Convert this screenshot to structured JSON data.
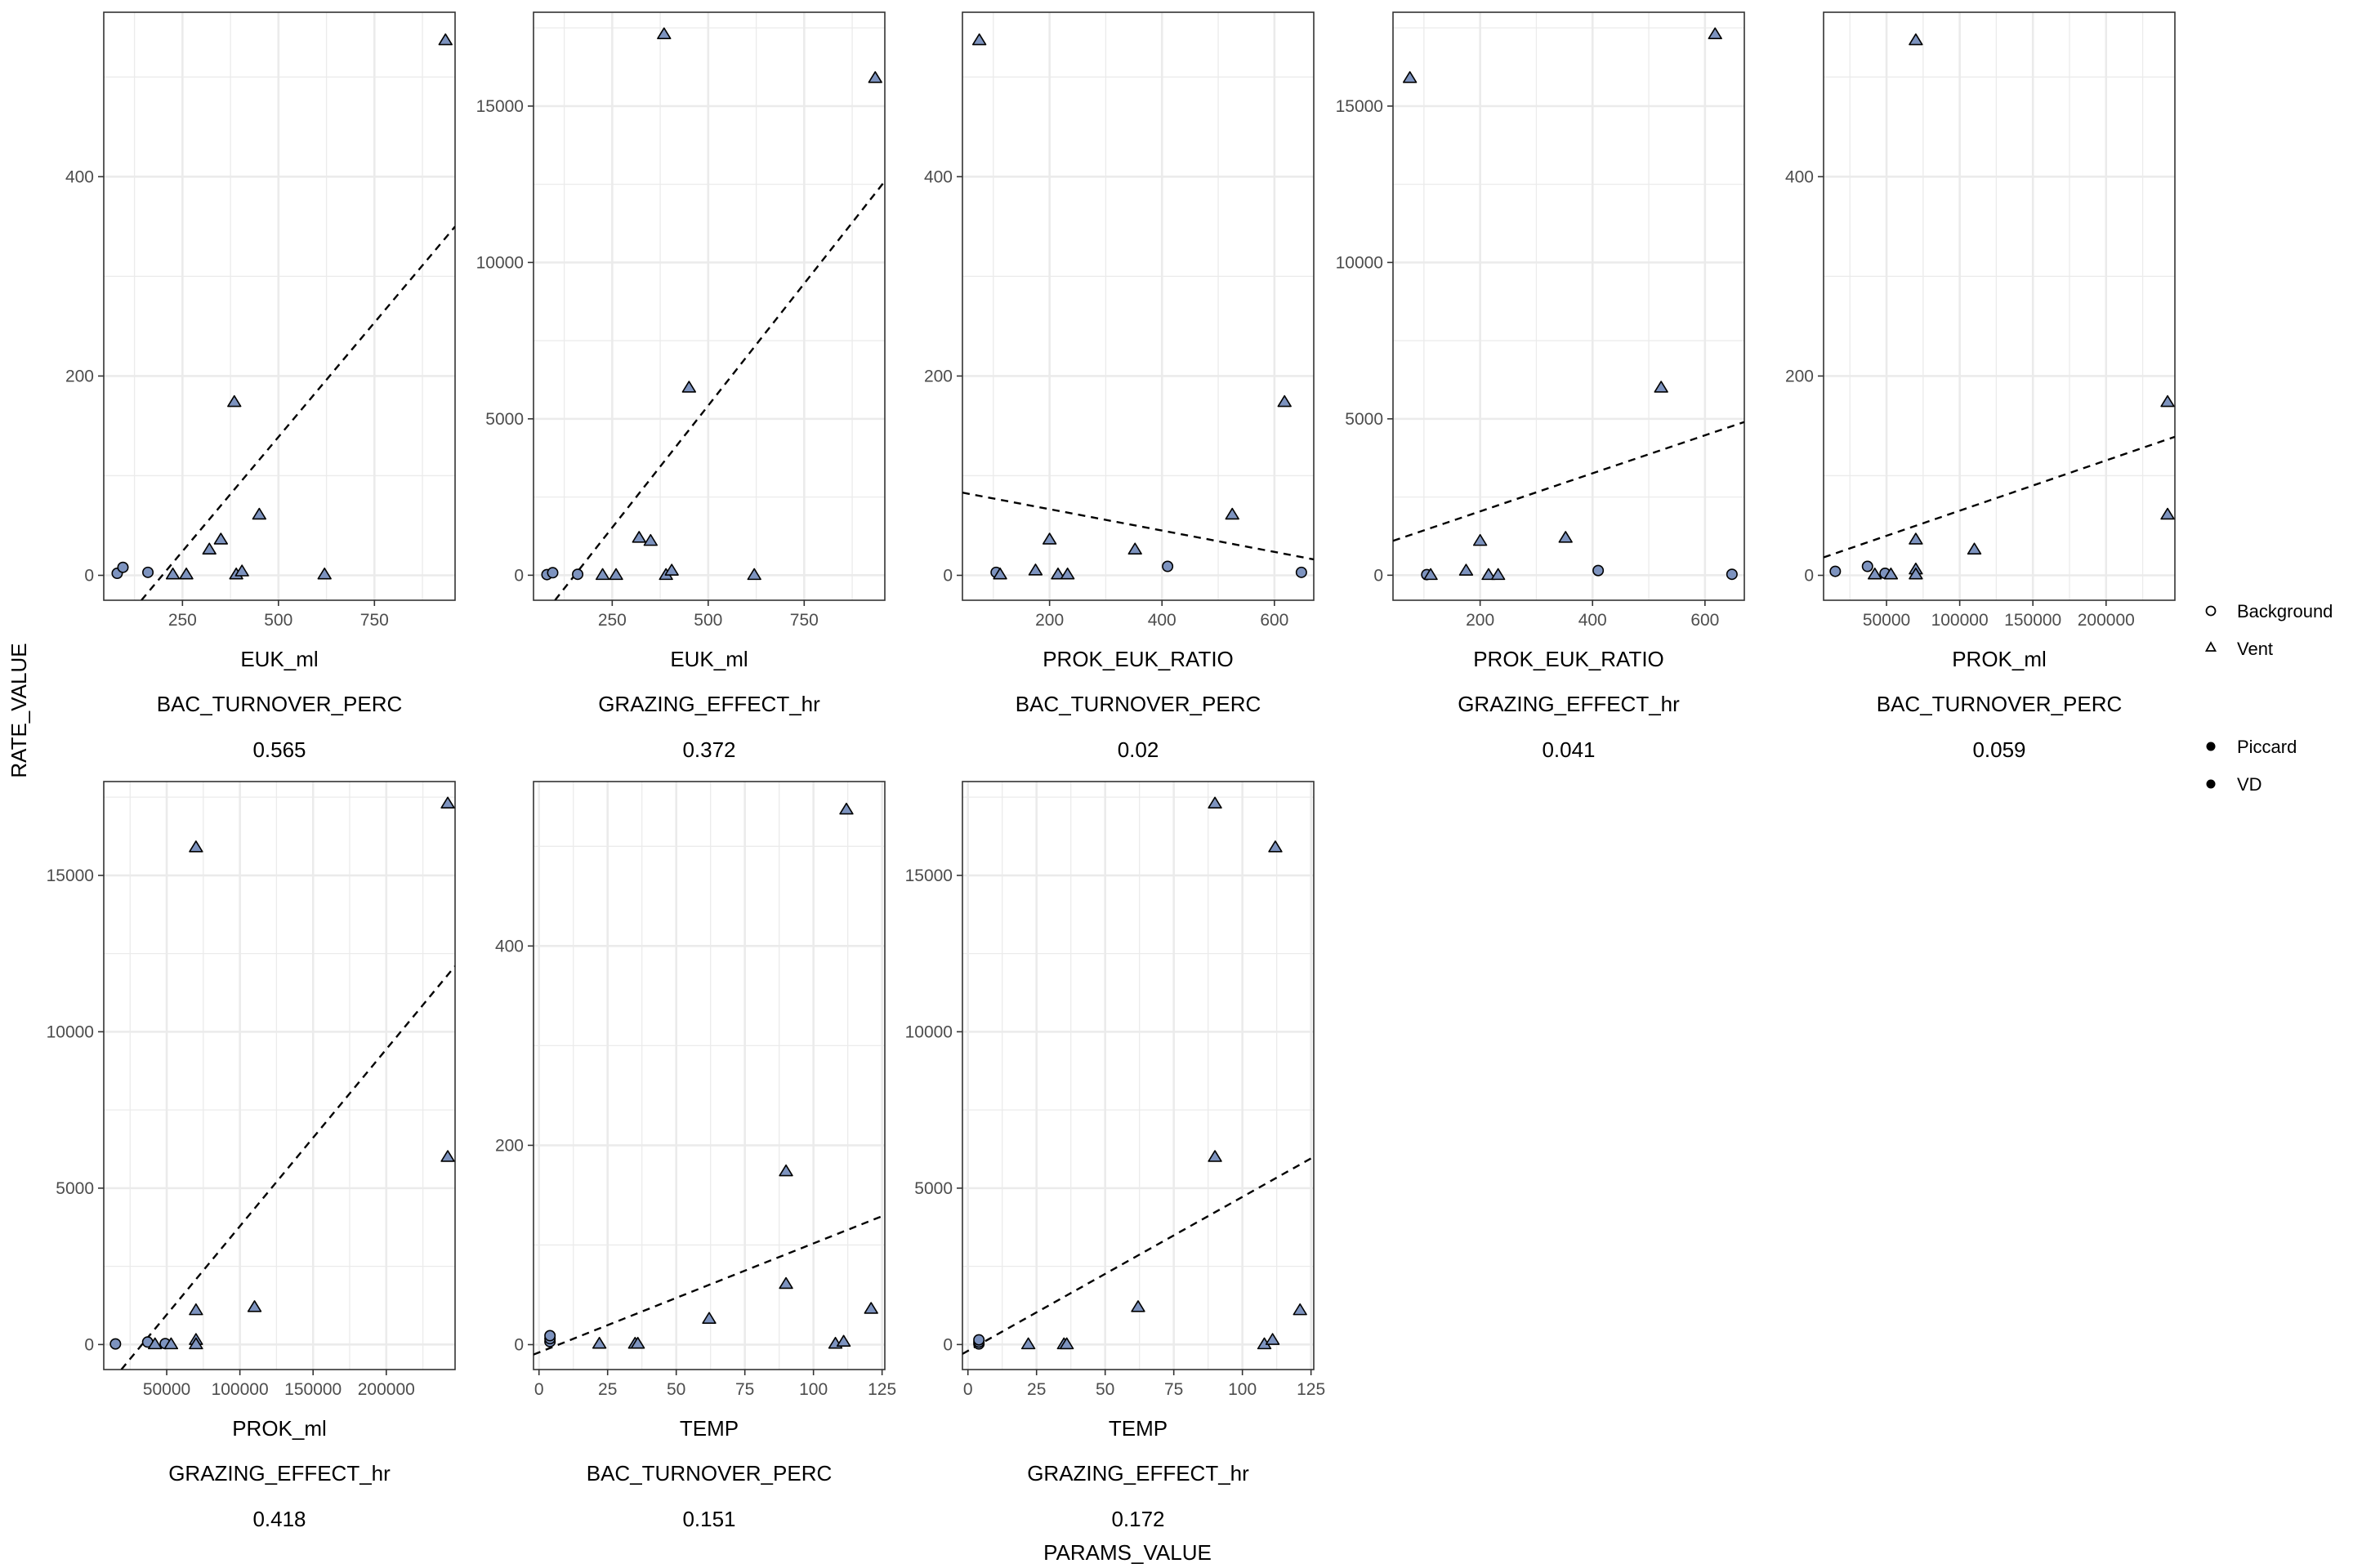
{
  "figure": {
    "y_axis_title": "RATE_VALUE",
    "x_axis_title": "PARAMS_VALUE"
  },
  "legend": {
    "shape_entries": [
      {
        "label": "Background",
        "shape": "circle-open"
      },
      {
        "label": "Vent",
        "shape": "triangle-open"
      }
    ],
    "color_entries": [
      {
        "label": "Piccard",
        "color": "#000000"
      },
      {
        "label": "VD",
        "color": "#000000"
      }
    ]
  },
  "colors": {
    "point_fill": "#7d93bf",
    "point_stroke": "#000000",
    "gridline": "#ebebeb",
    "panel_border": "#333333",
    "trend_line": "#000000"
  },
  "chart_data": [
    {
      "type": "scatter",
      "xlabel": "EUK_ml",
      "strip1": "BAC_TURNOVER_PERC",
      "strip2": "0.565",
      "xlim": [
        45,
        960
      ],
      "ylim": [
        -25,
        565
      ],
      "x_ticks": [
        250,
        500,
        750
      ],
      "x_tick_labels": [
        "250",
        "500",
        "750"
      ],
      "y_ticks": [
        0,
        200,
        400
      ],
      "y_tick_labels": [
        "0",
        "200",
        "400"
      ],
      "trend": [
        [
          143,
          -25
        ],
        [
          960,
          350
        ]
      ],
      "points": [
        {
          "x": 80,
          "y": 2,
          "shape": "circle"
        },
        {
          "x": 95,
          "y": 8,
          "shape": "circle"
        },
        {
          "x": 160,
          "y": 3,
          "shape": "circle"
        },
        {
          "x": 225,
          "y": 1,
          "shape": "triangle"
        },
        {
          "x": 260,
          "y": 1,
          "shape": "triangle"
        },
        {
          "x": 320,
          "y": 26,
          "shape": "triangle"
        },
        {
          "x": 350,
          "y": 36,
          "shape": "triangle"
        },
        {
          "x": 385,
          "y": 174,
          "shape": "triangle"
        },
        {
          "x": 390,
          "y": 1,
          "shape": "triangle"
        },
        {
          "x": 405,
          "y": 4,
          "shape": "triangle"
        },
        {
          "x": 450,
          "y": 61,
          "shape": "triangle"
        },
        {
          "x": 620,
          "y": 1,
          "shape": "triangle"
        },
        {
          "x": 935,
          "y": 537,
          "shape": "triangle"
        }
      ]
    },
    {
      "type": "scatter",
      "xlabel": "EUK_ml",
      "strip1": "GRAZING_EFFECT_hr",
      "strip2": "0.372",
      "xlim": [
        45,
        960
      ],
      "ylim": [
        -800,
        18000
      ],
      "x_ticks": [
        250,
        500,
        750
      ],
      "x_tick_labels": [
        "250",
        "500",
        "750"
      ],
      "y_ticks": [
        0,
        5000,
        10000,
        15000
      ],
      "y_tick_labels": [
        "0",
        "5000",
        "10000",
        "15000"
      ],
      "trend": [
        [
          101,
          -800
        ],
        [
          960,
          12600
        ]
      ],
      "points": [
        {
          "x": 80,
          "y": 20,
          "shape": "circle"
        },
        {
          "x": 95,
          "y": 80,
          "shape": "circle"
        },
        {
          "x": 160,
          "y": 30,
          "shape": "circle"
        },
        {
          "x": 225,
          "y": 10,
          "shape": "triangle"
        },
        {
          "x": 260,
          "y": 10,
          "shape": "triangle"
        },
        {
          "x": 320,
          "y": 1200,
          "shape": "triangle"
        },
        {
          "x": 350,
          "y": 1100,
          "shape": "triangle"
        },
        {
          "x": 385,
          "y": 17300,
          "shape": "triangle"
        },
        {
          "x": 390,
          "y": 10,
          "shape": "triangle"
        },
        {
          "x": 405,
          "y": 150,
          "shape": "triangle"
        },
        {
          "x": 450,
          "y": 6000,
          "shape": "triangle"
        },
        {
          "x": 620,
          "y": 10,
          "shape": "triangle"
        },
        {
          "x": 935,
          "y": 15900,
          "shape": "triangle"
        }
      ]
    },
    {
      "type": "scatter",
      "xlabel": "PROK_EUK_RATIO",
      "strip1": "BAC_TURNOVER_PERC",
      "strip2": "0.02",
      "xlim": [
        45,
        670
      ],
      "ylim": [
        -25,
        565
      ],
      "x_ticks": [
        200,
        400,
        600
      ],
      "x_tick_labels": [
        "200",
        "400",
        "600"
      ],
      "y_ticks": [
        0,
        200,
        400
      ],
      "y_tick_labels": [
        "0",
        "200",
        "400"
      ],
      "trend": [
        [
          45,
          83
        ],
        [
          670,
          16
        ]
      ],
      "points": [
        {
          "x": 105,
          "y": 3,
          "shape": "circle"
        },
        {
          "x": 410,
          "y": 9,
          "shape": "circle"
        },
        {
          "x": 648,
          "y": 3,
          "shape": "circle"
        },
        {
          "x": 75,
          "y": 537,
          "shape": "triangle"
        },
        {
          "x": 112,
          "y": 1,
          "shape": "triangle"
        },
        {
          "x": 175,
          "y": 5,
          "shape": "triangle"
        },
        {
          "x": 200,
          "y": 36,
          "shape": "triangle"
        },
        {
          "x": 215,
          "y": 1,
          "shape": "triangle"
        },
        {
          "x": 232,
          "y": 1,
          "shape": "triangle"
        },
        {
          "x": 352,
          "y": 26,
          "shape": "triangle"
        },
        {
          "x": 525,
          "y": 61,
          "shape": "triangle"
        },
        {
          "x": 618,
          "y": 174,
          "shape": "triangle"
        }
      ]
    },
    {
      "type": "scatter",
      "xlabel": "PROK_EUK_RATIO",
      "strip1": "GRAZING_EFFECT_hr",
      "strip2": "0.041",
      "xlim": [
        45,
        670
      ],
      "ylim": [
        -800,
        18000
      ],
      "x_ticks": [
        200,
        400,
        600
      ],
      "x_tick_labels": [
        "200",
        "400",
        "600"
      ],
      "y_ticks": [
        0,
        5000,
        10000,
        15000
      ],
      "y_tick_labels": [
        "0",
        "5000",
        "10000",
        "15000"
      ],
      "trend": [
        [
          45,
          1100
        ],
        [
          670,
          4900
        ]
      ],
      "points": [
        {
          "x": 105,
          "y": 20,
          "shape": "circle"
        },
        {
          "x": 410,
          "y": 150,
          "shape": "circle"
        },
        {
          "x": 648,
          "y": 30,
          "shape": "circle"
        },
        {
          "x": 75,
          "y": 15900,
          "shape": "triangle"
        },
        {
          "x": 112,
          "y": 10,
          "shape": "triangle"
        },
        {
          "x": 175,
          "y": 150,
          "shape": "triangle"
        },
        {
          "x": 200,
          "y": 1100,
          "shape": "triangle"
        },
        {
          "x": 215,
          "y": 10,
          "shape": "triangle"
        },
        {
          "x": 232,
          "y": 10,
          "shape": "triangle"
        },
        {
          "x": 352,
          "y": 1200,
          "shape": "triangle"
        },
        {
          "x": 522,
          "y": 6000,
          "shape": "triangle"
        },
        {
          "x": 618,
          "y": 17300,
          "shape": "triangle"
        }
      ]
    },
    {
      "type": "scatter",
      "xlabel": "PROK_ml",
      "strip1": "BAC_TURNOVER_PERC",
      "strip2": "0.059",
      "xlim": [
        7000,
        247000
      ],
      "ylim": [
        -25,
        565
      ],
      "x_ticks": [
        50000,
        100000,
        150000,
        200000
      ],
      "x_tick_labels": [
        "50000",
        "100000",
        "150000",
        "200000"
      ],
      "y_ticks": [
        0,
        200,
        400
      ],
      "y_tick_labels": [
        "0",
        "200",
        "400"
      ],
      "trend": [
        [
          7000,
          18
        ],
        [
          247000,
          139
        ]
      ],
      "points": [
        {
          "x": 15000,
          "y": 4,
          "shape": "circle"
        },
        {
          "x": 37000,
          "y": 9,
          "shape": "circle"
        },
        {
          "x": 49000,
          "y": 2,
          "shape": "circle"
        },
        {
          "x": 42000,
          "y": 1,
          "shape": "triangle"
        },
        {
          "x": 53000,
          "y": 1,
          "shape": "triangle"
        },
        {
          "x": 70000,
          "y": 537,
          "shape": "triangle"
        },
        {
          "x": 70000,
          "y": 36,
          "shape": "triangle"
        },
        {
          "x": 70000,
          "y": 6,
          "shape": "triangle"
        },
        {
          "x": 70000,
          "y": 1,
          "shape": "triangle"
        },
        {
          "x": 110000,
          "y": 26,
          "shape": "triangle"
        },
        {
          "x": 242000,
          "y": 174,
          "shape": "triangle"
        },
        {
          "x": 242000,
          "y": 61,
          "shape": "triangle"
        }
      ]
    },
    {
      "type": "scatter",
      "xlabel": "PROK_ml",
      "strip1": "GRAZING_EFFECT_hr",
      "strip2": "0.418",
      "xlim": [
        7000,
        247000
      ],
      "ylim": [
        -800,
        18000
      ],
      "x_ticks": [
        50000,
        100000,
        150000,
        200000
      ],
      "x_tick_labels": [
        "50000",
        "100000",
        "150000",
        "200000"
      ],
      "y_ticks": [
        0,
        5000,
        10000,
        15000
      ],
      "y_tick_labels": [
        "0",
        "5000",
        "10000",
        "15000"
      ],
      "trend": [
        [
          19000,
          -800
        ],
        [
          247000,
          12100
        ]
      ],
      "points": [
        {
          "x": 15000,
          "y": 20,
          "shape": "circle"
        },
        {
          "x": 37000,
          "y": 80,
          "shape": "circle"
        },
        {
          "x": 49000,
          "y": 30,
          "shape": "circle"
        },
        {
          "x": 42000,
          "y": 10,
          "shape": "triangle"
        },
        {
          "x": 53000,
          "y": 10,
          "shape": "triangle"
        },
        {
          "x": 70000,
          "y": 15900,
          "shape": "triangle"
        },
        {
          "x": 70000,
          "y": 1100,
          "shape": "triangle"
        },
        {
          "x": 70000,
          "y": 150,
          "shape": "triangle"
        },
        {
          "x": 70000,
          "y": 10,
          "shape": "triangle"
        },
        {
          "x": 110000,
          "y": 1200,
          "shape": "triangle"
        },
        {
          "x": 242000,
          "y": 17300,
          "shape": "triangle"
        },
        {
          "x": 242000,
          "y": 6000,
          "shape": "triangle"
        }
      ]
    },
    {
      "type": "scatter",
      "xlabel": "TEMP",
      "strip1": "BAC_TURNOVER_PERC",
      "strip2": "0.151",
      "xlim": [
        -2,
        126
      ],
      "ylim": [
        -25,
        565
      ],
      "x_ticks": [
        0,
        25,
        50,
        75,
        100,
        125
      ],
      "x_tick_labels": [
        "0",
        "25",
        "50",
        "75",
        "100",
        "125"
      ],
      "y_ticks": [
        0,
        200,
        400
      ],
      "y_tick_labels": [
        "0",
        "200",
        "400"
      ],
      "trend": [
        [
          -2,
          -10
        ],
        [
          126,
          130
        ]
      ],
      "points": [
        {
          "x": 4,
          "y": 3,
          "shape": "circle"
        },
        {
          "x": 4,
          "y": 6,
          "shape": "circle"
        },
        {
          "x": 4,
          "y": 9,
          "shape": "circle"
        },
        {
          "x": 22,
          "y": 1,
          "shape": "triangle"
        },
        {
          "x": 35,
          "y": 1,
          "shape": "triangle"
        },
        {
          "x": 36,
          "y": 1,
          "shape": "triangle"
        },
        {
          "x": 62,
          "y": 26,
          "shape": "triangle"
        },
        {
          "x": 90,
          "y": 174,
          "shape": "triangle"
        },
        {
          "x": 90,
          "y": 61,
          "shape": "triangle"
        },
        {
          "x": 108,
          "y": 1,
          "shape": "triangle"
        },
        {
          "x": 111,
          "y": 3,
          "shape": "triangle"
        },
        {
          "x": 112,
          "y": 537,
          "shape": "triangle"
        },
        {
          "x": 121,
          "y": 36,
          "shape": "triangle"
        }
      ]
    },
    {
      "type": "scatter",
      "xlabel": "TEMP",
      "strip1": "GRAZING_EFFECT_hr",
      "strip2": "0.172",
      "xlim": [
        -2,
        126
      ],
      "ylim": [
        -800,
        18000
      ],
      "x_ticks": [
        0,
        25,
        50,
        75,
        100,
        125
      ],
      "x_tick_labels": [
        "0",
        "25",
        "50",
        "75",
        "100",
        "125"
      ],
      "y_ticks": [
        0,
        5000,
        10000,
        15000
      ],
      "y_tick_labels": [
        "0",
        "5000",
        "10000",
        "15000"
      ],
      "trend": [
        [
          -2,
          -300
        ],
        [
          126,
          6000
        ]
      ],
      "points": [
        {
          "x": 4,
          "y": 20,
          "shape": "circle"
        },
        {
          "x": 4,
          "y": 80,
          "shape": "circle"
        },
        {
          "x": 4,
          "y": 150,
          "shape": "circle"
        },
        {
          "x": 22,
          "y": 10,
          "shape": "triangle"
        },
        {
          "x": 35,
          "y": 10,
          "shape": "triangle"
        },
        {
          "x": 36,
          "y": 10,
          "shape": "triangle"
        },
        {
          "x": 62,
          "y": 1200,
          "shape": "triangle"
        },
        {
          "x": 90,
          "y": 17300,
          "shape": "triangle"
        },
        {
          "x": 90,
          "y": 6000,
          "shape": "triangle"
        },
        {
          "x": 108,
          "y": 10,
          "shape": "triangle"
        },
        {
          "x": 111,
          "y": 150,
          "shape": "triangle"
        },
        {
          "x": 112,
          "y": 15900,
          "shape": "triangle"
        },
        {
          "x": 121,
          "y": 1100,
          "shape": "triangle"
        }
      ]
    }
  ]
}
